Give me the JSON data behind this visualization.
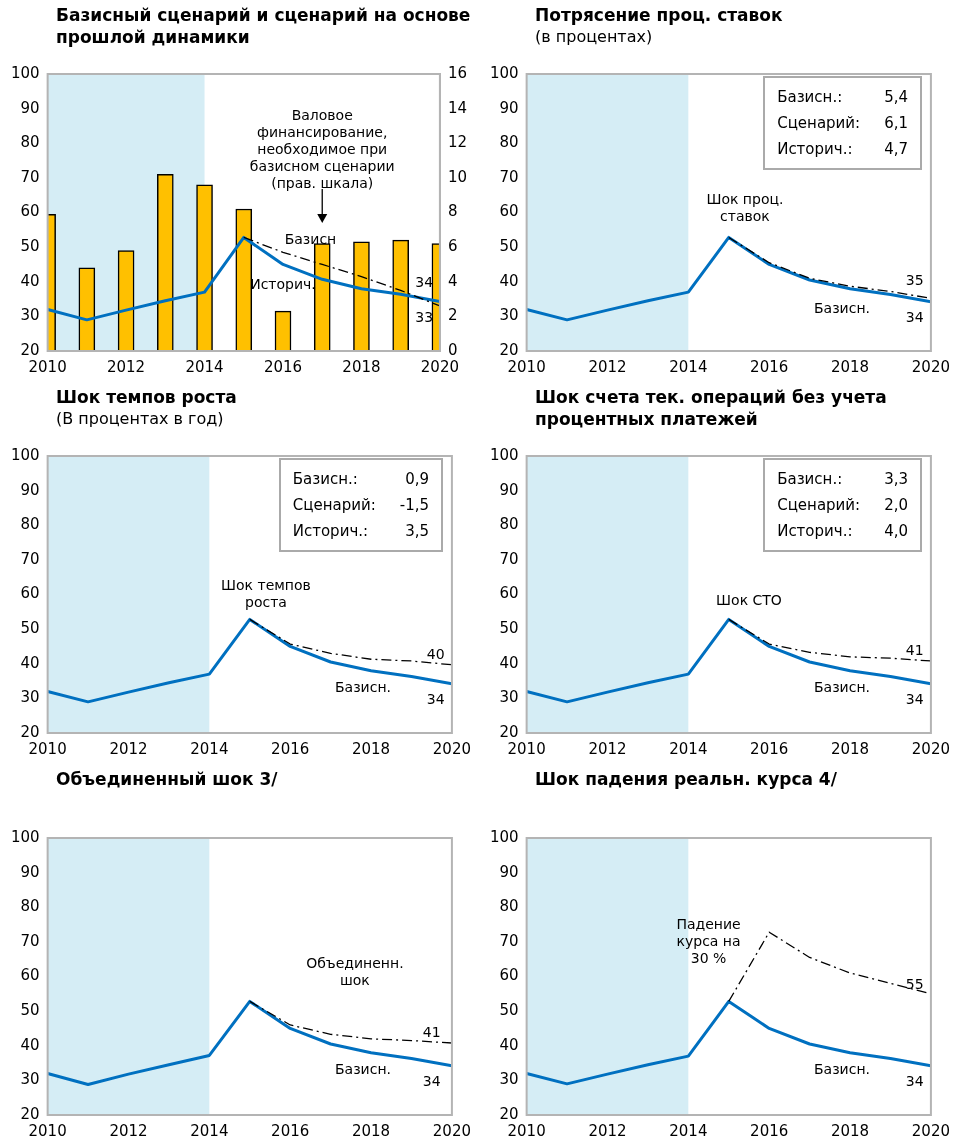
{
  "chart_data": [
    {
      "type": "line",
      "title": "Базисный сценарий и сценарий на основе прошлой динамики",
      "x": [
        2010,
        2011,
        2012,
        2013,
        2014,
        2015,
        2016,
        2017,
        2018,
        2019,
        2020
      ],
      "xlim": [
        2010,
        2020
      ],
      "xticks": [
        2010,
        2012,
        2014,
        2016,
        2018,
        2020
      ],
      "ylim": [
        20,
        100
      ],
      "yticks": [
        20,
        30,
        40,
        50,
        60,
        70,
        80,
        90,
        100
      ],
      "y2lim": [
        0,
        16
      ],
      "y2ticks": [
        0,
        2,
        4,
        6,
        8,
        10,
        12,
        14,
        16
      ],
      "grid": false,
      "legend": false,
      "marker": "none",
      "bands": [
        {
          "axis": "x",
          "from": 2010,
          "to": 2014,
          "color": "#d5edf5"
        }
      ],
      "series": [
        {
          "type": "bar",
          "axis": "y2",
          "color": "#ffc000",
          "values": [
            7.9,
            4.8,
            5.8,
            10.2,
            9.6,
            8.2,
            2.3,
            6.2,
            6.3,
            6.4,
            6.2
          ]
        },
        {
          "color": "#000000",
          "line_style": "dashed",
          "x": [
            2015,
            2016,
            2017,
            2018,
            2019,
            2020
          ],
          "values": [
            52.8,
            48.5,
            45,
            41.5,
            37.5,
            33
          ]
        },
        {
          "color": "#0070c0",
          "line_style": "solid",
          "values": [
            32,
            29,
            31.8,
            34.5,
            37,
            52.8,
            45,
            40.7,
            38,
            36.4,
            34.3
          ]
        }
      ],
      "annotations": [
        "Валовое финансирование, необходимое при базисном сценарии (прав. шкала)",
        "Базисн",
        "Историч.",
        "34",
        "33"
      ]
    },
    {
      "type": "line",
      "title": "Потрясение проц. ставок",
      "subtitle": "(в процентах)",
      "x": [
        2010,
        2011,
        2012,
        2013,
        2014,
        2015,
        2016,
        2017,
        2018,
        2019,
        2020
      ],
      "xlim": [
        2010,
        2020
      ],
      "xticks": [
        2010,
        2012,
        2014,
        2016,
        2018,
        2020
      ],
      "ylim": [
        20,
        100
      ],
      "yticks": [
        20,
        30,
        40,
        50,
        60,
        70,
        80,
        90,
        100
      ],
      "grid": false,
      "legend": false,
      "marker": "none",
      "bands": [
        {
          "axis": "x",
          "from": 2010,
          "to": 2014,
          "color": "#d5edf5"
        }
      ],
      "series": [
        {
          "color": "#000000",
          "line_style": "dashed",
          "x": [
            2015,
            2016,
            2017,
            2018,
            2019,
            2020
          ],
          "values": [
            52.8,
            45.5,
            41,
            38.7,
            37.2,
            35.2
          ]
        },
        {
          "color": "#0070c0",
          "line_style": "solid",
          "values": [
            32,
            29,
            31.8,
            34.5,
            37,
            52.8,
            45,
            40.5,
            38,
            36.3,
            34.2
          ]
        }
      ],
      "annotations": [
        "Базисн.: 5,4",
        "Сценарий: 6,1",
        "Историч.: 4,7",
        "Шок проц. ставок",
        "35",
        "Базисн.",
        "34"
      ]
    },
    {
      "type": "line",
      "title": "Шок темпов роста",
      "subtitle": "(В процентах в год)",
      "x": [
        2010,
        2011,
        2012,
        2013,
        2014,
        2015,
        2016,
        2017,
        2018,
        2019,
        2020
      ],
      "xlim": [
        2010,
        2020
      ],
      "xticks": [
        2010,
        2012,
        2014,
        2016,
        2018,
        2020
      ],
      "ylim": [
        20,
        100
      ],
      "yticks": [
        20,
        30,
        40,
        50,
        60,
        70,
        80,
        90,
        100
      ],
      "grid": false,
      "legend": false,
      "marker": "none",
      "bands": [
        {
          "axis": "x",
          "from": 2010,
          "to": 2014,
          "color": "#d5edf5"
        }
      ],
      "series": [
        {
          "color": "#000000",
          "line_style": "dashed",
          "x": [
            2015,
            2016,
            2017,
            2018,
            2019,
            2020
          ],
          "values": [
            52.8,
            45.7,
            43,
            41.3,
            40.8,
            39.7
          ]
        },
        {
          "color": "#0070c0",
          "line_style": "solid",
          "values": [
            32,
            29,
            31.8,
            34.5,
            37,
            52.8,
            45,
            40.5,
            38,
            36.3,
            34.2
          ]
        }
      ],
      "annotations": [
        "Базисн.: 0,9",
        "Сценарий: -1,5",
        "Историч.: 3,5",
        "Шок темпов роста",
        "40",
        "Базисн.",
        "34"
      ]
    },
    {
      "type": "line",
      "title": "Шок счета тек. операций без учета процентных платежей",
      "x": [
        2010,
        2011,
        2012,
        2013,
        2014,
        2015,
        2016,
        2017,
        2018,
        2019,
        2020
      ],
      "xlim": [
        2010,
        2020
      ],
      "xticks": [
        2010,
        2012,
        2014,
        2016,
        2018,
        2020
      ],
      "ylim": [
        20,
        100
      ],
      "yticks": [
        20,
        30,
        40,
        50,
        60,
        70,
        80,
        90,
        100
      ],
      "grid": false,
      "legend": false,
      "marker": "none",
      "bands": [
        {
          "axis": "x",
          "from": 2010,
          "to": 2014,
          "color": "#d5edf5"
        }
      ],
      "series": [
        {
          "color": "#000000",
          "line_style": "dashed",
          "x": [
            2015,
            2016,
            2017,
            2018,
            2019,
            2020
          ],
          "values": [
            52.8,
            45.7,
            43.3,
            42,
            41.6,
            40.8
          ]
        },
        {
          "color": "#0070c0",
          "line_style": "solid",
          "values": [
            32,
            29,
            31.8,
            34.5,
            37,
            52.8,
            45,
            40.5,
            38,
            36.3,
            34.2
          ]
        }
      ],
      "annotations": [
        "Базисн.: 3,3",
        "Сценарий: 2,0",
        "Историч.: 4,0",
        "Шок СТО",
        "41",
        "Базисн.",
        "34"
      ]
    },
    {
      "type": "line",
      "title": "Объединенный шок 3/",
      "x": [
        2010,
        2011,
        2012,
        2013,
        2014,
        2015,
        2016,
        2017,
        2018,
        2019,
        2020
      ],
      "xlim": [
        2010,
        2020
      ],
      "xticks": [
        2010,
        2012,
        2014,
        2016,
        2018,
        2020
      ],
      "ylim": [
        20,
        100
      ],
      "yticks": [
        20,
        30,
        40,
        50,
        60,
        70,
        80,
        90,
        100
      ],
      "grid": false,
      "legend": false,
      "marker": "none",
      "bands": [
        {
          "axis": "x",
          "from": 2010,
          "to": 2014,
          "color": "#d5edf5"
        }
      ],
      "series": [
        {
          "color": "#000000",
          "line_style": "dashed",
          "x": [
            2015,
            2016,
            2017,
            2018,
            2019,
            2020
          ],
          "values": [
            52.8,
            46,
            43.3,
            42,
            41.5,
            40.8
          ]
        },
        {
          "color": "#0070c0",
          "line_style": "solid",
          "values": [
            32,
            28.8,
            31.8,
            34.5,
            37.2,
            52.8,
            45,
            40.5,
            38,
            36.3,
            34.2
          ]
        }
      ],
      "annotations": [
        "Объединенн. шок",
        "41",
        "Базисн.",
        "34"
      ]
    },
    {
      "type": "line",
      "title": "Шок падения реальн. курса 4/",
      "x": [
        2010,
        2011,
        2012,
        2013,
        2014,
        2015,
        2016,
        2017,
        2018,
        2019,
        2020
      ],
      "xlim": [
        2010,
        2020
      ],
      "xticks": [
        2010,
        2012,
        2014,
        2016,
        2018,
        2020
      ],
      "ylim": [
        20,
        100
      ],
      "yticks": [
        20,
        30,
        40,
        50,
        60,
        70,
        80,
        90,
        100
      ],
      "grid": false,
      "legend": false,
      "marker": "none",
      "bands": [
        {
          "axis": "x",
          "from": 2010,
          "to": 2014,
          "color": "#d5edf5"
        }
      ],
      "series": [
        {
          "color": "#000000",
          "line_style": "dashed",
          "x": [
            2015,
            2016,
            2017,
            2018,
            2019,
            2020
          ],
          "values": [
            52.8,
            72.8,
            65.5,
            61,
            58,
            55
          ]
        },
        {
          "color": "#0070c0",
          "line_style": "solid",
          "values": [
            32,
            29,
            31.8,
            34.5,
            37,
            52.8,
            45,
            40.5,
            38,
            36.3,
            34.2
          ]
        }
      ],
      "annotations": [
        "Падение курса на 30 %",
        "55",
        "Базисн.",
        "34"
      ]
    }
  ]
}
